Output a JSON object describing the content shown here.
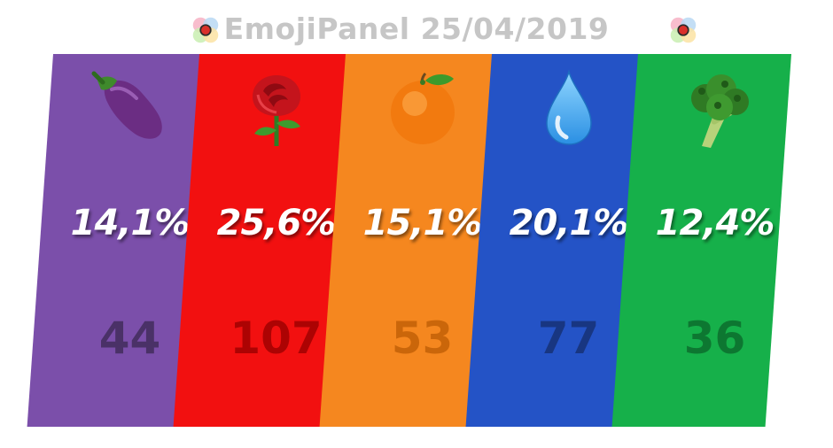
{
  "header": {
    "title": "EmojiPanel 25/04/2019"
  },
  "panels": [
    {
      "emoji": "eggplant-icon",
      "percent": "14,1%",
      "count": "44",
      "color": "#7b4faa",
      "count_color": "#3f2a57"
    },
    {
      "emoji": "rose-icon",
      "percent": "25,6%",
      "count": "107",
      "color": "#f21010",
      "count_color": "#9b0000"
    },
    {
      "emoji": "orange-icon",
      "percent": "15,1%",
      "count": "53",
      "color": "#f5871f",
      "count_color": "#c05e06"
    },
    {
      "emoji": "droplet-icon",
      "percent": "20,1%",
      "count": "77",
      "color": "#2453c6",
      "count_color": "#163070"
    },
    {
      "emoji": "broccoli-icon",
      "percent": "12,4%",
      "count": "36",
      "color": "#16b04a",
      "count_color": "#0b6a2b"
    }
  ]
}
